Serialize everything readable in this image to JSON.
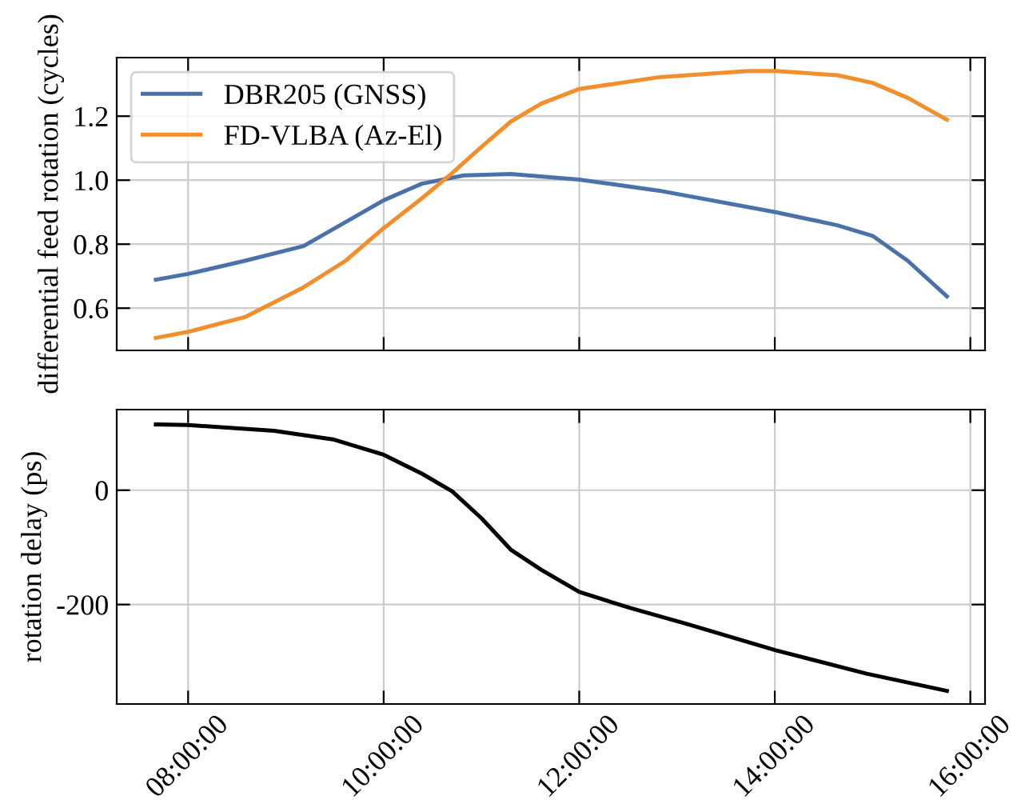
{
  "chart_data": [
    {
      "type": "line",
      "ylabel": "differential feed rotation (cycles)",
      "xlim": [
        7.27,
        16.15
      ],
      "xticks": [
        {
          "value": 8,
          "label": null
        },
        {
          "value": 10,
          "label": null
        },
        {
          "value": 12,
          "label": null
        },
        {
          "value": 14,
          "label": null
        },
        {
          "value": 16,
          "label": null
        }
      ],
      "ylim": [
        0.468,
        1.383
      ],
      "yticks": [
        {
          "value": 0.6,
          "label": "0.6"
        },
        {
          "value": 0.8,
          "label": "0.8"
        },
        {
          "value": 1.0,
          "label": "1.0"
        },
        {
          "value": 1.2,
          "label": "1.2"
        }
      ],
      "tick_labels": "y",
      "grid": true,
      "legend": "top left",
      "series": [
        {
          "name": "DBR205 (GNSS)",
          "color": "#4a72a8",
          "x": [
            7.67,
            8.0,
            8.58,
            9.18,
            9.61,
            10.0,
            10.39,
            10.82,
            11.3,
            12.0,
            12.82,
            14.01,
            14.64,
            15.0,
            15.36,
            15.76
          ],
          "values": [
            0.689,
            0.707,
            0.748,
            0.794,
            0.869,
            0.937,
            0.989,
            1.015,
            1.019,
            1.002,
            0.967,
            0.9,
            0.859,
            0.826,
            0.748,
            0.637
          ]
        },
        {
          "name": "FD-VLBA (Az-El)",
          "color": "#f28e2b",
          "x": [
            7.67,
            8.0,
            8.58,
            9.18,
            9.61,
            10.0,
            10.39,
            10.7,
            11.0,
            11.3,
            11.61,
            12.0,
            12.82,
            13.73,
            14.01,
            14.64,
            15.0,
            15.36,
            15.76
          ],
          "values": [
            0.507,
            0.526,
            0.572,
            0.665,
            0.748,
            0.85,
            0.943,
            1.022,
            1.104,
            1.183,
            1.239,
            1.285,
            1.322,
            1.341,
            1.341,
            1.328,
            1.304,
            1.257,
            1.189
          ]
        }
      ]
    },
    {
      "type": "line",
      "ylabel": "rotation delay (ps)",
      "xlim": [
        7.27,
        16.15
      ],
      "xticks": [
        {
          "value": 8,
          "label": "08:00:00"
        },
        {
          "value": 10,
          "label": "10:00:00"
        },
        {
          "value": 12,
          "label": "12:00:00"
        },
        {
          "value": 14,
          "label": "14:00:00"
        },
        {
          "value": 16,
          "label": "16:00:00"
        }
      ],
      "ylim": [
        -374,
        141
      ],
      "yticks": [
        0,
        -200
      ],
      "grid": true,
      "series": [
        {
          "color": "#000000",
          "x": [
            7.67,
            8.0,
            8.88,
            9.48,
            10.0,
            10.39,
            10.7,
            11.0,
            11.3,
            11.61,
            12.0,
            12.52,
            13.12,
            14.01,
            14.94,
            15.76
          ],
          "values": [
            115,
            114,
            104,
            89,
            62,
            29,
            -2,
            -49,
            -104,
            -139,
            -178,
            -206,
            -235,
            -280,
            -321,
            -351
          ]
        }
      ]
    }
  ]
}
